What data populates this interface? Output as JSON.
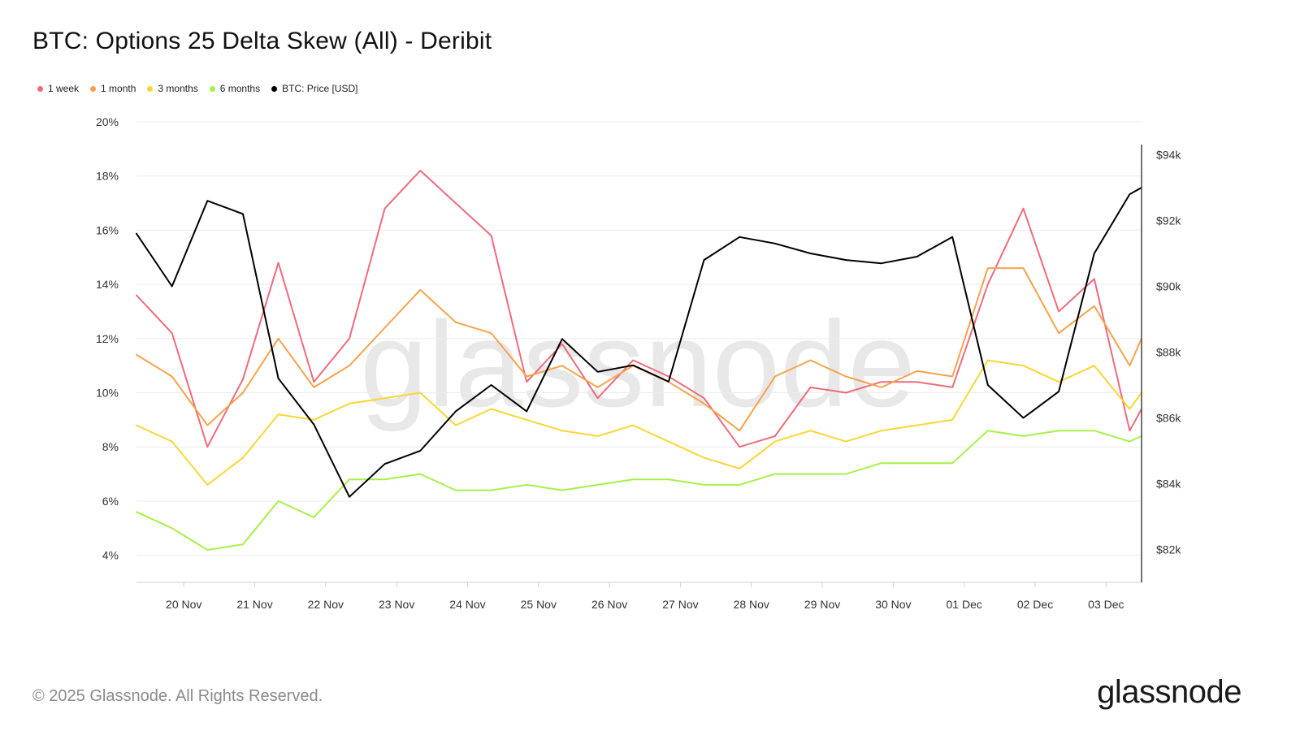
{
  "title": "BTC: Options 25 Delta Skew (All) - Deribit",
  "watermark": "glassnode",
  "footer": {
    "copyright": "© 2025 Glassnode. All Rights Reserved.",
    "logo": "glassnode"
  },
  "legend": [
    {
      "label": "1 week",
      "color": "#ef6b7b"
    },
    {
      "label": "1 month",
      "color": "#f7a24b"
    },
    {
      "label": "3 months",
      "color": "#fad634"
    },
    {
      "label": "6 months",
      "color": "#a6f14a"
    },
    {
      "label": "BTC: Price [USD]",
      "color": "#000000"
    }
  ],
  "chart_data": {
    "type": "line",
    "x_tick_labels": [
      "20 Nov",
      "21 Nov",
      "22 Nov",
      "23 Nov",
      "24 Nov",
      "25 Nov",
      "26 Nov",
      "27 Nov",
      "28 Nov",
      "29 Nov",
      "30 Nov",
      "01 Dec",
      "02 Dec",
      "03 Dec"
    ],
    "y_left_ticks": [
      "4%",
      "6%",
      "8%",
      "10%",
      "12%",
      "14%",
      "16%",
      "18%",
      "20%"
    ],
    "y_left_range": [
      3,
      20
    ],
    "y_right_ticks": [
      "$82k",
      "$84k",
      "$86k",
      "$88k",
      "$90k",
      "$92k",
      "$94k"
    ],
    "y_right_range": [
      81000,
      95000
    ],
    "x_range_days": [
      "19 Nov 08:00",
      "03 Dec 12:00"
    ],
    "grid": "horizontal",
    "legend_position": "top-left",
    "x": [
      "19 Nov 08:00",
      "19 Nov 20:00",
      "20 Nov 08:00",
      "20 Nov 20:00",
      "21 Nov 08:00",
      "21 Nov 20:00",
      "22 Nov 08:00",
      "22 Nov 20:00",
      "23 Nov 08:00",
      "23 Nov 20:00",
      "24 Nov 08:00",
      "24 Nov 20:00",
      "25 Nov 08:00",
      "25 Nov 20:00",
      "26 Nov 08:00",
      "26 Nov 20:00",
      "27 Nov 08:00",
      "27 Nov 20:00",
      "28 Nov 08:00",
      "28 Nov 20:00",
      "29 Nov 08:00",
      "29 Nov 20:00",
      "30 Nov 08:00",
      "30 Nov 20:00",
      "01 Dec 08:00",
      "01 Dec 20:00",
      "02 Dec 08:00",
      "02 Dec 20:00",
      "03 Dec 08:00",
      "03 Dec 12:00"
    ],
    "series": [
      {
        "name": "1 week",
        "axis": "left",
        "color": "#ef6b7b",
        "values": [
          13.6,
          12.2,
          8.0,
          10.5,
          14.8,
          10.4,
          12.0,
          16.8,
          18.2,
          17.0,
          15.8,
          10.4,
          11.8,
          9.8,
          11.2,
          10.6,
          9.8,
          8.0,
          8.4,
          10.2,
          10.0,
          10.4,
          10.4,
          10.2,
          14.0,
          16.8,
          13.0,
          14.2,
          8.6,
          9.4
        ]
      },
      {
        "name": "1 month",
        "axis": "left",
        "color": "#f7a24b",
        "values": [
          11.4,
          10.6,
          8.8,
          10.0,
          12.0,
          10.2,
          11.0,
          12.4,
          13.8,
          12.6,
          12.2,
          10.6,
          11.0,
          10.2,
          11.0,
          10.4,
          9.6,
          8.6,
          10.6,
          11.2,
          10.6,
          10.2,
          10.8,
          10.6,
          14.6,
          14.6,
          12.2,
          13.2,
          11.0,
          12.0
        ]
      },
      {
        "name": "3 months",
        "axis": "left",
        "color": "#fad634",
        "values": [
          8.8,
          8.2,
          6.6,
          7.6,
          9.2,
          9.0,
          9.6,
          9.8,
          10.0,
          8.8,
          9.4,
          9.0,
          8.6,
          8.4,
          8.8,
          8.2,
          7.6,
          7.2,
          8.2,
          8.6,
          8.2,
          8.6,
          8.8,
          9.0,
          11.2,
          11.0,
          10.4,
          11.0,
          9.4,
          10.0
        ]
      },
      {
        "name": "6 months",
        "axis": "left",
        "color": "#a6f14a",
        "values": [
          5.6,
          5.0,
          4.2,
          4.4,
          6.0,
          5.4,
          6.8,
          6.8,
          7.0,
          6.4,
          6.4,
          6.6,
          6.4,
          6.6,
          6.8,
          6.8,
          6.6,
          6.6,
          7.0,
          7.0,
          7.0,
          7.4,
          7.4,
          7.4,
          8.6,
          8.4,
          8.6,
          8.6,
          8.2,
          8.4
        ]
      },
      {
        "name": "BTC: Price [USD]",
        "axis": "right",
        "color": "#000000",
        "values": [
          91600,
          90000,
          92600,
          92200,
          87200,
          85800,
          83600,
          84600,
          85000,
          86200,
          87000,
          86200,
          88400,
          87400,
          87600,
          87100,
          90800,
          91500,
          91300,
          91000,
          90800,
          90700,
          90900,
          91500,
          87000,
          86000,
          86800,
          91000,
          92800,
          93000
        ]
      }
    ]
  }
}
